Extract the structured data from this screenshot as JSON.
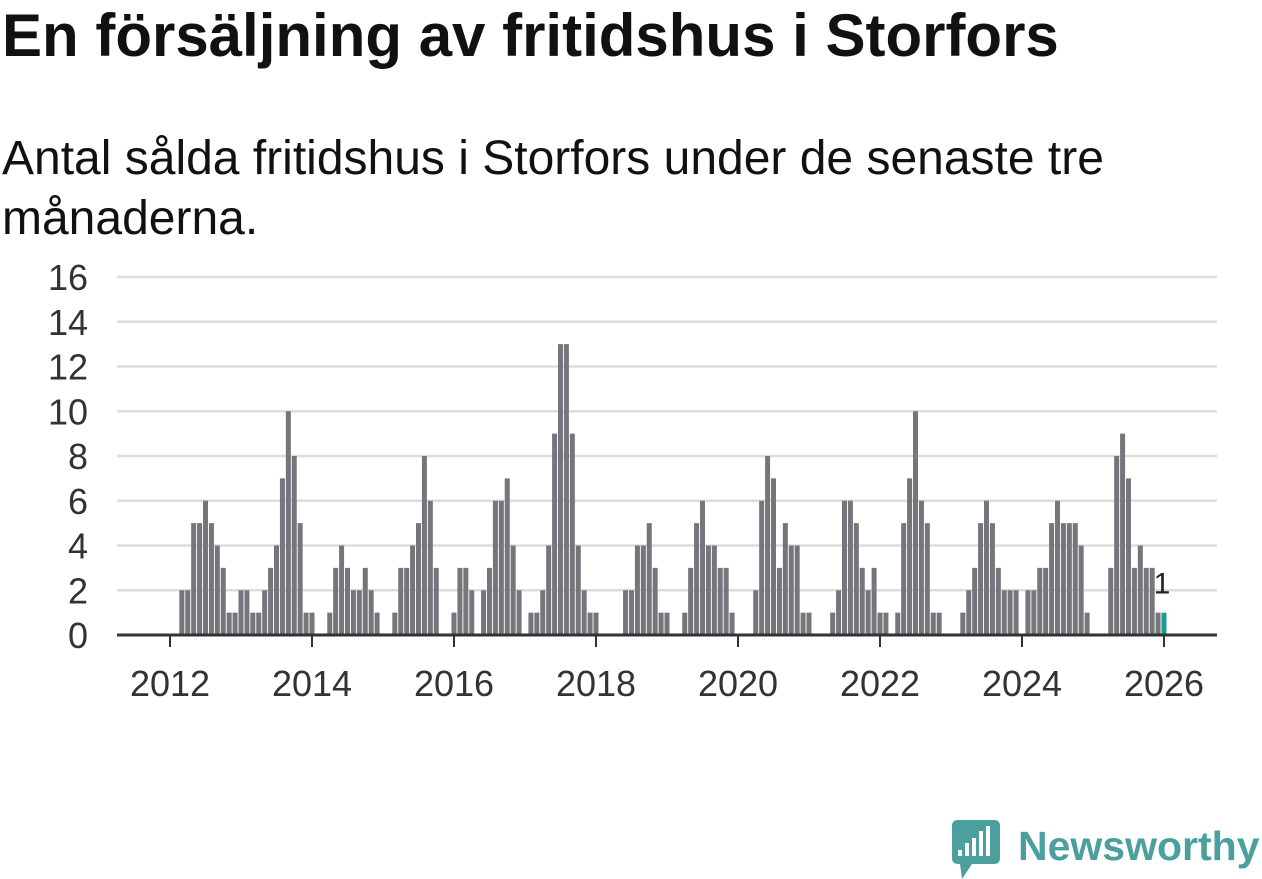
{
  "colors": {
    "bar": "#76757b",
    "highlight": "#1b9e8e",
    "grid": "#dddddd",
    "axis": "#333333",
    "brand": "#4ba09d"
  },
  "brand": {
    "name": "Newsworthy",
    "icon": "newsworthy-logo-icon"
  },
  "chart_data": {
    "type": "bar",
    "title": "En försäljning av fritidshus i Storfors",
    "subtitle": "Antal sålda fritidshus i Storfors under de senaste tre månaderna.",
    "ylim": [
      0,
      16
    ],
    "yticks": [
      0,
      2,
      4,
      6,
      8,
      10,
      12,
      14,
      16
    ],
    "xticks": [
      "2012",
      "2014",
      "2016",
      "2018",
      "2020",
      "2022",
      "2024",
      "2026"
    ],
    "start": {
      "year": 2012,
      "month": 1
    },
    "values": [
      0,
      0,
      2,
      2,
      5,
      5,
      6,
      5,
      4,
      3,
      1,
      1,
      2,
      2,
      1,
      1,
      2,
      3,
      4,
      7,
      10,
      8,
      5,
      1,
      1,
      0,
      0,
      1,
      3,
      4,
      3,
      2,
      2,
      3,
      2,
      1,
      0,
      0,
      1,
      3,
      3,
      4,
      5,
      8,
      6,
      3,
      0,
      0,
      1,
      3,
      3,
      2,
      0,
      2,
      3,
      6,
      6,
      7,
      4,
      2,
      0,
      1,
      1,
      2,
      4,
      9,
      13,
      13,
      9,
      4,
      2,
      1,
      1,
      0,
      0,
      0,
      0,
      2,
      2,
      4,
      4,
      5,
      3,
      1,
      1,
      0,
      0,
      1,
      3,
      5,
      6,
      4,
      4,
      3,
      3,
      1,
      0,
      0,
      0,
      2,
      6,
      8,
      7,
      3,
      5,
      4,
      4,
      1,
      1,
      0,
      0,
      0,
      1,
      2,
      6,
      6,
      5,
      3,
      2,
      3,
      1,
      1,
      0,
      1,
      5,
      7,
      10,
      6,
      5,
      1,
      1,
      0,
      0,
      0,
      1,
      2,
      3,
      5,
      6,
      5,
      3,
      2,
      2,
      2,
      0,
      2,
      2,
      3,
      3,
      5,
      6,
      5,
      5,
      5,
      4,
      1,
      0,
      0,
      0,
      3,
      8,
      9,
      7,
      3,
      4,
      3,
      3,
      1,
      1
    ],
    "highlight": {
      "year": 2026,
      "month": 1,
      "value": 1,
      "label": "1"
    }
  }
}
